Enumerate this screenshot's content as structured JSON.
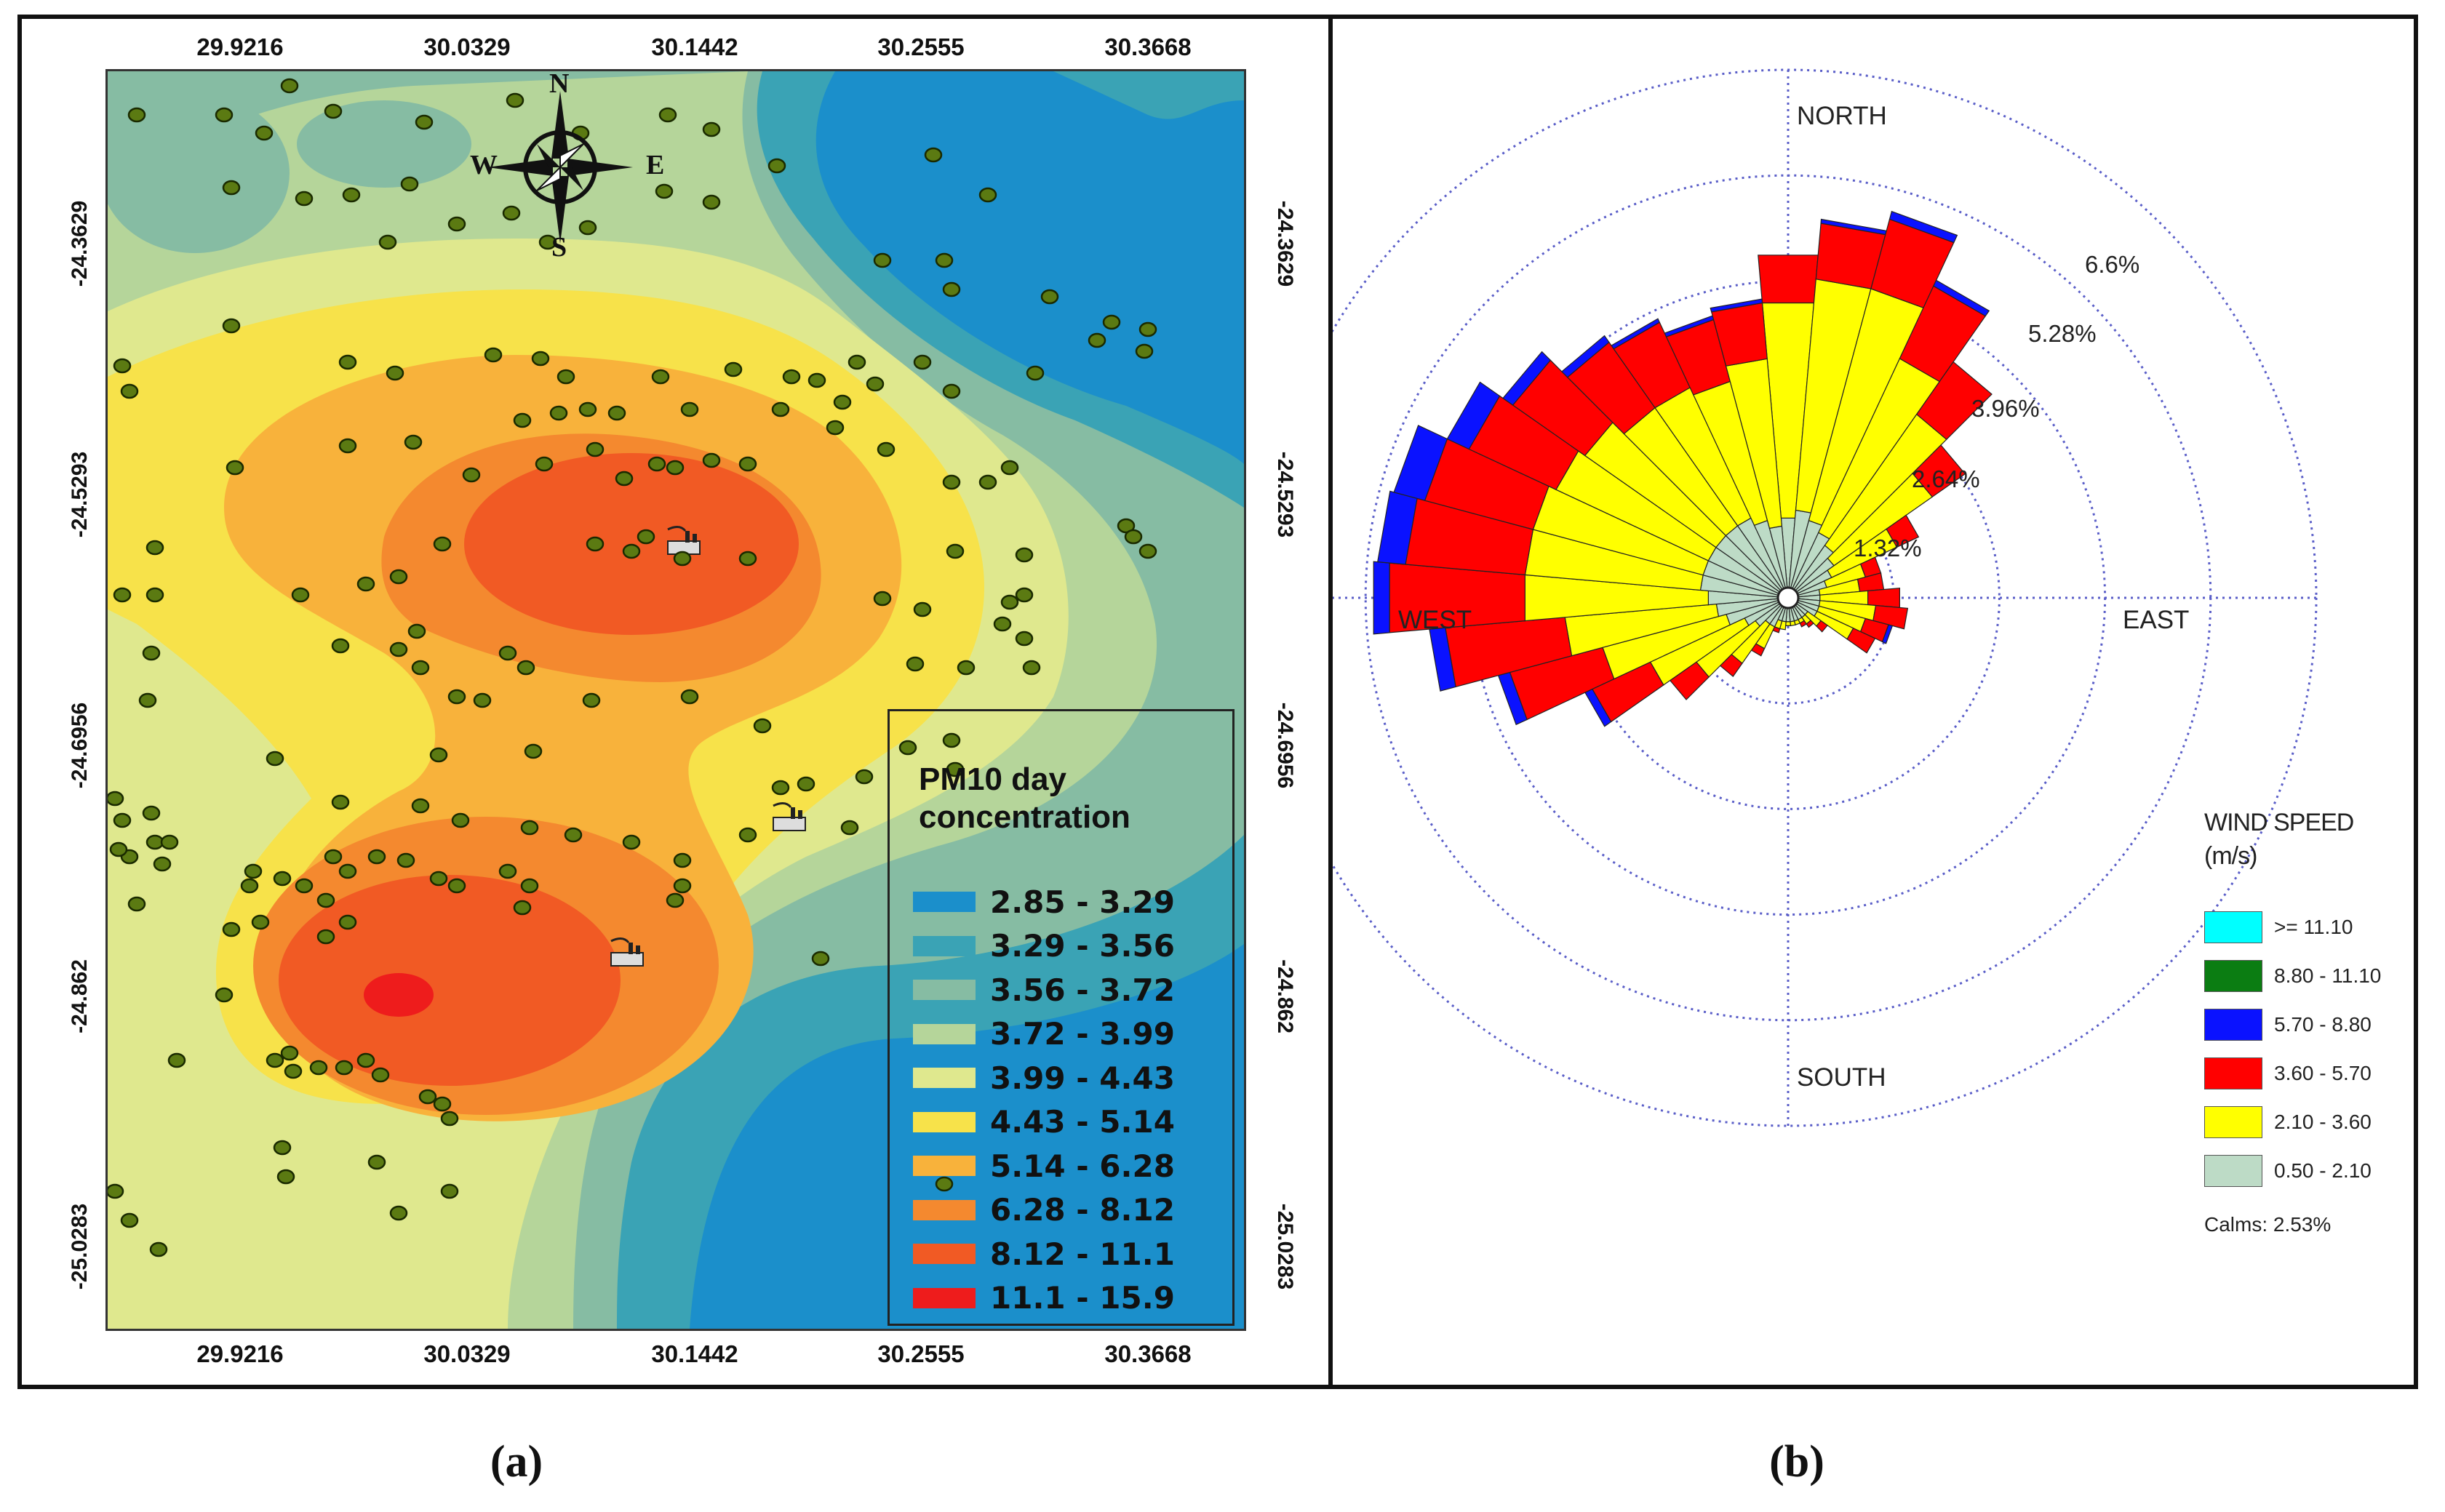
{
  "panel_a": {
    "caption": "(a)",
    "longitude_ticks": [
      "29.9216",
      "30.0329",
      "30.1442",
      "30.2555",
      "30.3668"
    ],
    "latitude_ticks": [
      "-24.3629",
      "-24.5293",
      "-24.6956",
      "-24.862",
      "-25.0283"
    ],
    "compass": {
      "n": "N",
      "s": "S",
      "e": "E",
      "w": "W"
    },
    "legend": {
      "title_line1": "PM10 day",
      "title_line2": "concentration",
      "classes": [
        {
          "label": "2.85 - 3.29",
          "color": "#1b8fcb"
        },
        {
          "label": "3.29 - 3.56",
          "color": "#3aa3b5"
        },
        {
          "label": "3.56 - 3.72",
          "color": "#86bca3"
        },
        {
          "label": "3.72 - 3.99",
          "color": "#b5d59a"
        },
        {
          "label": "3.99 - 4.43",
          "color": "#dfe88e"
        },
        {
          "label": "4.43 - 5.14",
          "color": "#f7e24a"
        },
        {
          "label": "5.14 - 6.28",
          "color": "#f8b23b"
        },
        {
          "label": "6.28 - 8.12",
          "color": "#f4892f"
        },
        {
          "label": "8.12 - 11.1",
          "color": "#f15a24"
        },
        {
          "label": "11.1 - 15.9",
          "color": "#ee1c1c"
        }
      ]
    },
    "station_color": "#5b7a12",
    "factory_icon": "factory-icon"
  },
  "panel_b": {
    "caption": "(b)",
    "directions": {
      "north": "NORTH",
      "south": "SOUTH",
      "east": "EAST",
      "west": "WEST"
    },
    "ring_labels": [
      "1.32%",
      "2.64%",
      "3.96%",
      "5.28%",
      "6.6%"
    ],
    "legend": {
      "title_line1": "WIND SPEED",
      "title_line2": "(m/s)",
      "classes": [
        {
          "label": ">= 11.10",
          "color": "#00ffff"
        },
        {
          "label": "8.80 - 11.10",
          "color": "#0b7d12"
        },
        {
          "label": "5.70 - 8.80",
          "color": "#0a12ff"
        },
        {
          "label": "3.60 - 5.70",
          "color": "#ff0000"
        },
        {
          "label": "2.10 - 3.60",
          "color": "#ffff00"
        },
        {
          "label": "0.50 - 2.10",
          "color": "#bddbc6"
        }
      ],
      "calms": "Calms: 2.53%"
    },
    "chart_data": {
      "type": "wind-rose",
      "sectors": 36,
      "directions_deg": [
        0,
        10,
        20,
        30,
        40,
        50,
        60,
        70,
        80,
        90,
        100,
        110,
        120,
        130,
        140,
        150,
        160,
        170,
        180,
        190,
        200,
        210,
        220,
        230,
        240,
        250,
        260,
        270,
        280,
        290,
        300,
        310,
        320,
        330,
        340,
        350
      ],
      "units": "% frequency",
      "series": [
        {
          "name": "0.50 - 2.10",
          "values": [
            0.9,
            1.0,
            0.9,
            0.8,
            0.7,
            0.6,
            0.5,
            0.4,
            0.3,
            0.3,
            0.3,
            0.3,
            0.3,
            0.2,
            0.2,
            0.2,
            0.2,
            0.2,
            0.2,
            0.2,
            0.2,
            0.3,
            0.3,
            0.4,
            0.5,
            0.7,
            0.8,
            0.9,
            1.0,
            1.0,
            1.0,
            1.0,
            1.0,
            1.0,
            0.9,
            0.8
          ]
        },
        {
          "name": "2.10 - 3.60",
          "values": [
            2.7,
            2.9,
            3.0,
            2.4,
            2.0,
            1.5,
            0.9,
            0.5,
            0.5,
            0.6,
            0.7,
            0.6,
            0.5,
            0.2,
            0.1,
            0.05,
            0.05,
            0.05,
            0.05,
            0.1,
            0.1,
            0.3,
            0.6,
            0.9,
            1.3,
            1.6,
            1.9,
            2.3,
            2.2,
            2.2,
            2.1,
            2.0,
            1.8,
            1.8,
            1.8,
            2.1
          ]
        },
        {
          "name": "3.60 - 5.70",
          "values": [
            0.6,
            0.7,
            0.9,
            1.0,
            0.8,
            0.5,
            0.3,
            0.2,
            0.3,
            0.4,
            0.4,
            0.3,
            0.3,
            0.1,
            0.05,
            0.05,
            0.0,
            0.0,
            0.0,
            0.0,
            0.05,
            0.1,
            0.2,
            0.4,
            0.8,
            1.2,
            1.5,
            1.7,
            1.5,
            1.4,
            1.2,
            1.1,
            1.0,
            0.9,
            0.8,
            0.7
          ]
        },
        {
          "name": "5.70 - 8.80",
          "values": [
            0.0,
            0.05,
            0.1,
            0.08,
            0.0,
            0.0,
            0.0,
            0.0,
            0.0,
            0.0,
            0.0,
            0.05,
            0.0,
            0.0,
            0.0,
            0.0,
            0.0,
            0.0,
            0.0,
            0.0,
            0.0,
            0.0,
            0.0,
            0.0,
            0.1,
            0.15,
            0.2,
            0.2,
            0.35,
            0.4,
            0.3,
            0.15,
            0.1,
            0.05,
            0.05,
            0.05
          ]
        },
        {
          "name": "8.80 - 11.10",
          "values": [
            0,
            0,
            0,
            0,
            0,
            0,
            0,
            0,
            0,
            0,
            0,
            0,
            0,
            0,
            0,
            0,
            0,
            0,
            0,
            0,
            0,
            0,
            0,
            0,
            0,
            0,
            0,
            0,
            0,
            0,
            0,
            0,
            0,
            0,
            0,
            0
          ]
        },
        {
          "name": ">= 11.10",
          "values": [
            0,
            0,
            0,
            0,
            0,
            0,
            0,
            0,
            0,
            0,
            0,
            0,
            0,
            0,
            0,
            0,
            0,
            0,
            0,
            0,
            0,
            0,
            0,
            0,
            0,
            0,
            0,
            0,
            0,
            0,
            0,
            0,
            0,
            0,
            0,
            0
          ]
        }
      ],
      "rings": [
        1.32,
        2.64,
        3.96,
        5.28,
        6.6
      ],
      "calms_percent": 2.53
    }
  }
}
